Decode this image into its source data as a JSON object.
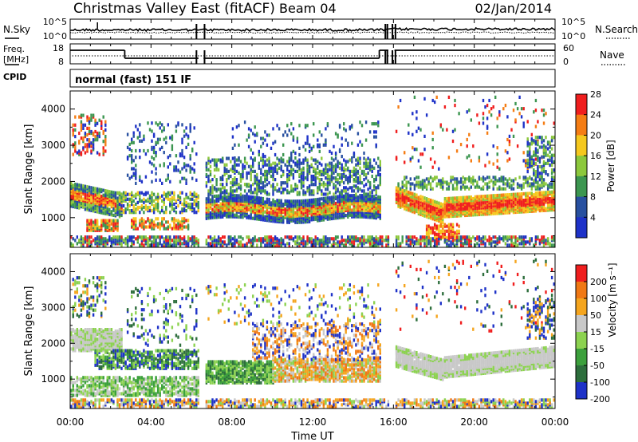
{
  "header": {
    "station": "Christmas Valley East (fitACF)",
    "beam": "Beam 04",
    "date": "02/Jan/2014"
  },
  "status_panels": {
    "noise": {
      "left_label": "N.Sky",
      "right_label": "N.Search",
      "left_ticks": [
        "10^5",
        "10^0"
      ],
      "right_ticks": [
        "10^5",
        "10^0"
      ]
    },
    "frequency": {
      "left_label_line1": "Freq.",
      "left_label_line2": "[MHz]",
      "right_label": "Nave",
      "left_ticks": [
        "18",
        "8"
      ],
      "right_ticks": [
        "60",
        "0"
      ]
    },
    "cpid": {
      "label": "CPID",
      "mode_text": "normal (fast) 151 IF"
    }
  },
  "chart_data": [
    {
      "type": "heatmap",
      "name": "Power",
      "ylabel": "Slant Range [km]",
      "yticks": [
        "1000",
        "2000",
        "3000",
        "4000"
      ],
      "ylim": [
        180,
        4500
      ],
      "colorbar_label": "Power [dB]",
      "colorbar_ticks": [
        "4",
        "8",
        "12",
        "16",
        "20",
        "24",
        "28"
      ],
      "colorbar_colors": [
        "#1e32c8",
        "#2850a0",
        "#3c9650",
        "#8cc83c",
        "#f5c81e",
        "#f57d14",
        "#f01e1e"
      ]
    },
    {
      "type": "heatmap",
      "name": "Velocity",
      "ylabel": "Slant Range [km]",
      "yticks": [
        "1000",
        "2000",
        "3000",
        "4000"
      ],
      "ylim": [
        180,
        4500
      ],
      "colorbar_label": "Velocity [m s⁻¹]",
      "colorbar_ticks": [
        "200",
        "100",
        "50",
        "15",
        "-15",
        "-50",
        "-100",
        "-200"
      ],
      "colorbar_colors": [
        "#1e32c8",
        "#2d6e3c",
        "#3ca03c",
        "#8cd250",
        "#c8c8c8",
        "#f5a51e",
        "#f07814",
        "#f01e1e"
      ]
    }
  ],
  "xaxis": {
    "label": "Time UT",
    "ticks": [
      "00:00",
      "04:00",
      "08:00",
      "12:00",
      "16:00",
      "20:00",
      "00:00"
    ]
  }
}
